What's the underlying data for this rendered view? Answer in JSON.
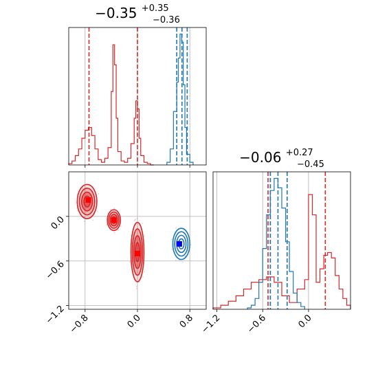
{
  "colors": {
    "red": "#d62728",
    "blue": "#1f77b4",
    "red_marker": "#ff0000",
    "blue_marker": "#0000ff",
    "grid": "#b0b0b0"
  },
  "chart_data": [
    {
      "type": "histogram",
      "panel": "top-left",
      "title": {
        "base": "−0.35",
        "sup": "+0.35",
        "sub": "−0.36"
      },
      "xlim": [
        -1.05,
        1.05
      ],
      "x_ticks": [
        -0.8,
        0.0,
        0.8
      ],
      "grid": true,
      "series": [
        {
          "color": "red",
          "bins": [
            -1.05,
            -1.0,
            -0.95,
            -0.9,
            -0.85,
            -0.8,
            -0.75,
            -0.7,
            -0.65,
            -0.6,
            -0.55,
            -0.5,
            -0.45,
            -0.4,
            -0.375,
            -0.35,
            -0.325,
            -0.3,
            -0.25,
            -0.2,
            -0.15,
            -0.1,
            -0.05,
            -0.025,
            0.0,
            0.025,
            0.05,
            0.1,
            0.15,
            0.2,
            0.25
          ],
          "counts": [
            0.01,
            0.03,
            0.07,
            0.12,
            0.2,
            0.26,
            0.28,
            0.22,
            0.12,
            0.04,
            0.02,
            0.05,
            0.13,
            0.55,
            0.9,
            0.75,
            0.35,
            0.1,
            0.03,
            0.02,
            0.05,
            0.16,
            0.35,
            0.48,
            0.42,
            0.2,
            0.07,
            0.02,
            0.01,
            0.0
          ]
        },
        {
          "color": "blue",
          "bins": [
            0.45,
            0.5,
            0.55,
            0.6,
            0.625,
            0.65,
            0.675,
            0.7,
            0.725,
            0.75,
            0.8,
            0.85
          ],
          "counts": [
            0.02,
            0.12,
            0.4,
            0.62,
            0.8,
            0.98,
            0.92,
            0.6,
            0.28,
            0.08,
            0.02
          ]
        }
      ],
      "vlines": [
        {
          "color": "red",
          "x": -0.74
        },
        {
          "color": "red",
          "x": 0.0
        },
        {
          "color": "blue",
          "x": 0.6
        },
        {
          "color": "blue",
          "x": 0.68
        },
        {
          "color": "blue",
          "x": 0.76
        }
      ]
    },
    {
      "type": "contour",
      "panel": "bottom-left",
      "xlim": [
        -1.05,
        1.05
      ],
      "ylim": [
        -1.25,
        0.6
      ],
      "x_ticks": [
        -0.8,
        0.0,
        0.8
      ],
      "y_ticks": [
        -1.2,
        -0.6,
        0.0
      ],
      "grid": true,
      "blobs": [
        {
          "color": "red",
          "cx": -0.77,
          "cy": 0.2,
          "rx": 0.15,
          "ry": 0.23
        },
        {
          "color": "red",
          "cx": -0.36,
          "cy": -0.05,
          "rx": 0.1,
          "ry": 0.14
        },
        {
          "color": "red",
          "cx": 0.0,
          "cy": -0.48,
          "rx": 0.1,
          "ry": 0.4
        },
        {
          "color": "blue",
          "cx": 0.67,
          "cy": -0.37,
          "rx": 0.13,
          "ry": 0.21
        }
      ],
      "markers": [
        {
          "color": "red",
          "x": -0.75,
          "y": 0.22
        },
        {
          "color": "red",
          "x": -0.36,
          "y": -0.05
        },
        {
          "color": "red",
          "x": 0.0,
          "y": -0.5
        },
        {
          "color": "blue",
          "x": 0.64,
          "y": -0.37
        }
      ]
    },
    {
      "type": "histogram",
      "panel": "bottom-right",
      "title": {
        "base": "−0.06",
        "sup": "+0.27",
        "sub": "−0.45"
      },
      "xlim": [
        -1.25,
        0.55
      ],
      "x_ticks": [
        -1.2,
        -0.6,
        0.0
      ],
      "grid": true,
      "series": [
        {
          "color": "red",
          "bins": [
            -1.25,
            -1.15,
            -1.05,
            -0.95,
            -0.85,
            -0.75,
            -0.65,
            -0.55,
            -0.45,
            -0.35,
            -0.25,
            -0.15,
            -0.05,
            0.0,
            0.05,
            0.1,
            0.15,
            0.2,
            0.25,
            0.3,
            0.35,
            0.4,
            0.45,
            0.5,
            0.55
          ],
          "counts": [
            0.01,
            0.03,
            0.06,
            0.1,
            0.15,
            0.2,
            0.22,
            0.24,
            0.2,
            0.1,
            0.05,
            0.15,
            0.22,
            0.85,
            0.7,
            0.2,
            0.3,
            0.4,
            0.42,
            0.38,
            0.25,
            0.15,
            0.08,
            0.03
          ]
        },
        {
          "color": "blue",
          "bins": [
            -0.8,
            -0.75,
            -0.7,
            -0.65,
            -0.6,
            -0.55,
            -0.5,
            -0.45,
            -0.4,
            -0.35,
            -0.3,
            -0.25,
            -0.2,
            -0.15,
            -0.1,
            -0.05
          ],
          "counts": [
            0.01,
            0.03,
            0.08,
            0.2,
            0.45,
            0.7,
            0.88,
            0.97,
            0.9,
            0.75,
            0.5,
            0.28,
            0.12,
            0.05,
            0.02
          ]
        }
      ],
      "vlines": [
        {
          "color": "red",
          "x": -0.53
        },
        {
          "color": "red",
          "x": -0.5
        },
        {
          "color": "red",
          "x": 0.22
        },
        {
          "color": "blue",
          "x": -0.5
        },
        {
          "color": "blue",
          "x": -0.4
        },
        {
          "color": "blue",
          "x": -0.28
        }
      ]
    }
  ]
}
